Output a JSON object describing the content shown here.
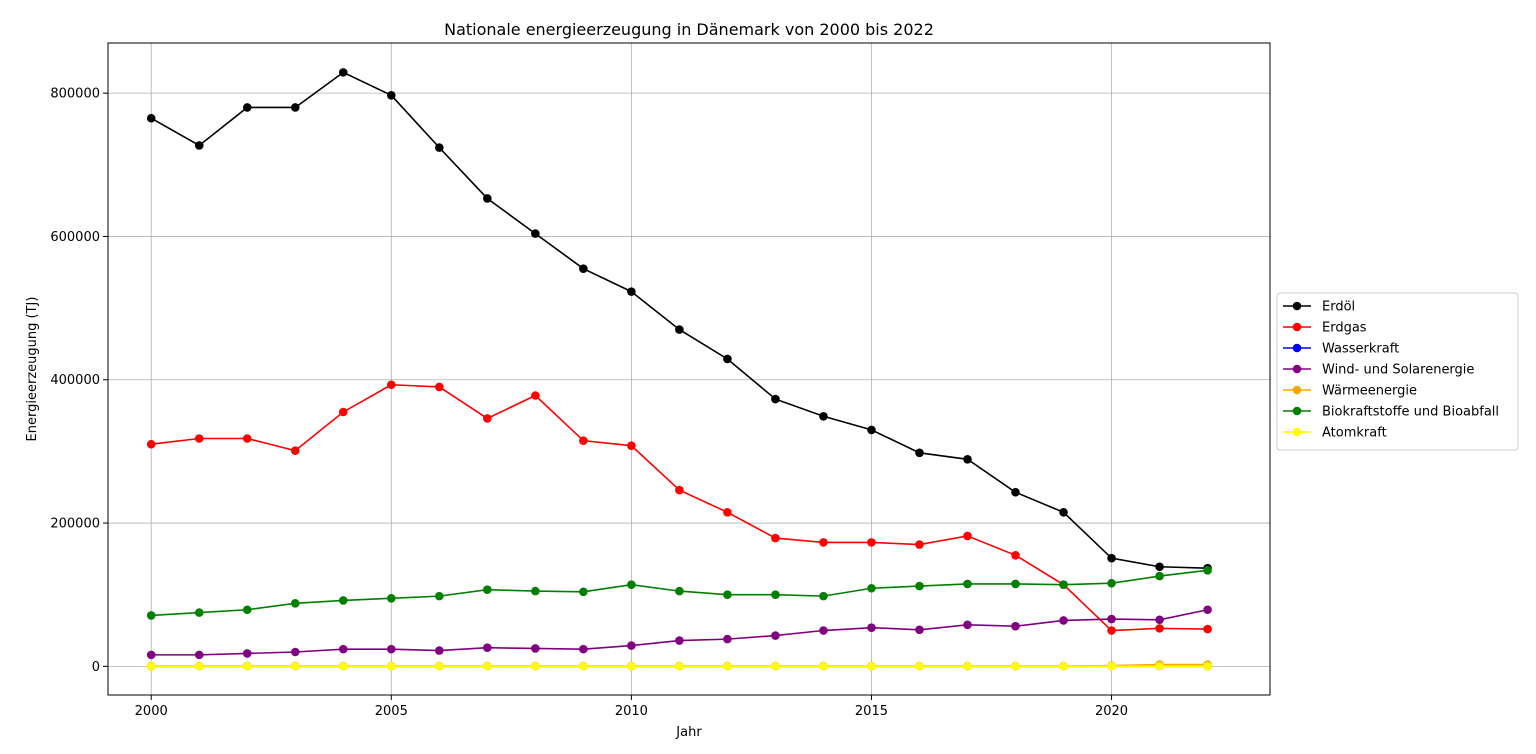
{
  "chart_data": {
    "type": "line",
    "title": "Nationale energieerzeugung in Dänemark von 2000 bis 2022",
    "xlabel": "Jahr",
    "ylabel": "Energieerzeugung (TJ)",
    "x": [
      2000,
      2001,
      2002,
      2003,
      2004,
      2005,
      2006,
      2007,
      2008,
      2009,
      2010,
      2011,
      2012,
      2013,
      2014,
      2015,
      2016,
      2017,
      2018,
      2019,
      2020,
      2021,
      2022
    ],
    "xlim": [
      1999.1,
      2023.3
    ],
    "ylim": [
      -40000,
      870000
    ],
    "xticks": [
      2000,
      2005,
      2010,
      2015,
      2020
    ],
    "yticks": [
      0,
      200000,
      400000,
      600000,
      800000
    ],
    "xtick_labels": [
      "2000",
      "2005",
      "2010",
      "2015",
      "2020"
    ],
    "ytick_labels": [
      "0",
      "200000",
      "400000",
      "600000",
      "800000"
    ],
    "grid": true,
    "legend_position": "outside-right",
    "series": [
      {
        "name": "Erdöl",
        "color": "#000000",
        "values": [
          765000,
          727000,
          780000,
          780000,
          829000,
          797000,
          724000,
          653000,
          604000,
          555000,
          523000,
          470000,
          429000,
          373000,
          349000,
          330000,
          298000,
          289000,
          243000,
          215000,
          151000,
          139000,
          137000
        ]
      },
      {
        "name": "Erdgas",
        "color": "#ff0000",
        "values": [
          310000,
          318000,
          318000,
          301000,
          355000,
          393000,
          390000,
          346000,
          378000,
          315000,
          308000,
          246000,
          215000,
          179000,
          173000,
          173000,
          170000,
          182000,
          155000,
          114000,
          50000,
          53000,
          52000
        ]
      },
      {
        "name": "Wasserkraft",
        "color": "#0000ff",
        "values": [
          100,
          100,
          100,
          100,
          100,
          100,
          100,
          100,
          100,
          100,
          100,
          100,
          100,
          100,
          100,
          100,
          100,
          100,
          100,
          100,
          100,
          100,
          100
        ]
      },
      {
        "name": "Wind- und Solarenergie",
        "color": "#800080",
        "values": [
          16000,
          16000,
          18000,
          20000,
          24000,
          24000,
          22000,
          26000,
          25000,
          24000,
          29000,
          36000,
          38000,
          43000,
          50000,
          54000,
          51000,
          58000,
          56000,
          64000,
          66000,
          65000,
          79000
        ]
      },
      {
        "name": "Wärmeenergie",
        "color": "#ffa500",
        "values": [
          500,
          500,
          500,
          500,
          500,
          500,
          500,
          500,
          500,
          500,
          500,
          500,
          500,
          500,
          500,
          500,
          500,
          500,
          500,
          500,
          1000,
          2500,
          2500
        ]
      },
      {
        "name": "Biokraftstoffe und Bioabfall",
        "color": "#008000",
        "values": [
          71000,
          75000,
          79000,
          88000,
          92000,
          95000,
          98000,
          107000,
          105000,
          104000,
          114000,
          105000,
          100000,
          100000,
          98000,
          109000,
          112000,
          115000,
          115000,
          114000,
          116000,
          126000,
          134000
        ]
      },
      {
        "name": "Atomkraft",
        "color": "#ffff00",
        "values": [
          0,
          0,
          0,
          0,
          0,
          0,
          0,
          0,
          0,
          0,
          0,
          0,
          0,
          0,
          0,
          0,
          0,
          0,
          0,
          0,
          0,
          0,
          0
        ]
      }
    ]
  }
}
